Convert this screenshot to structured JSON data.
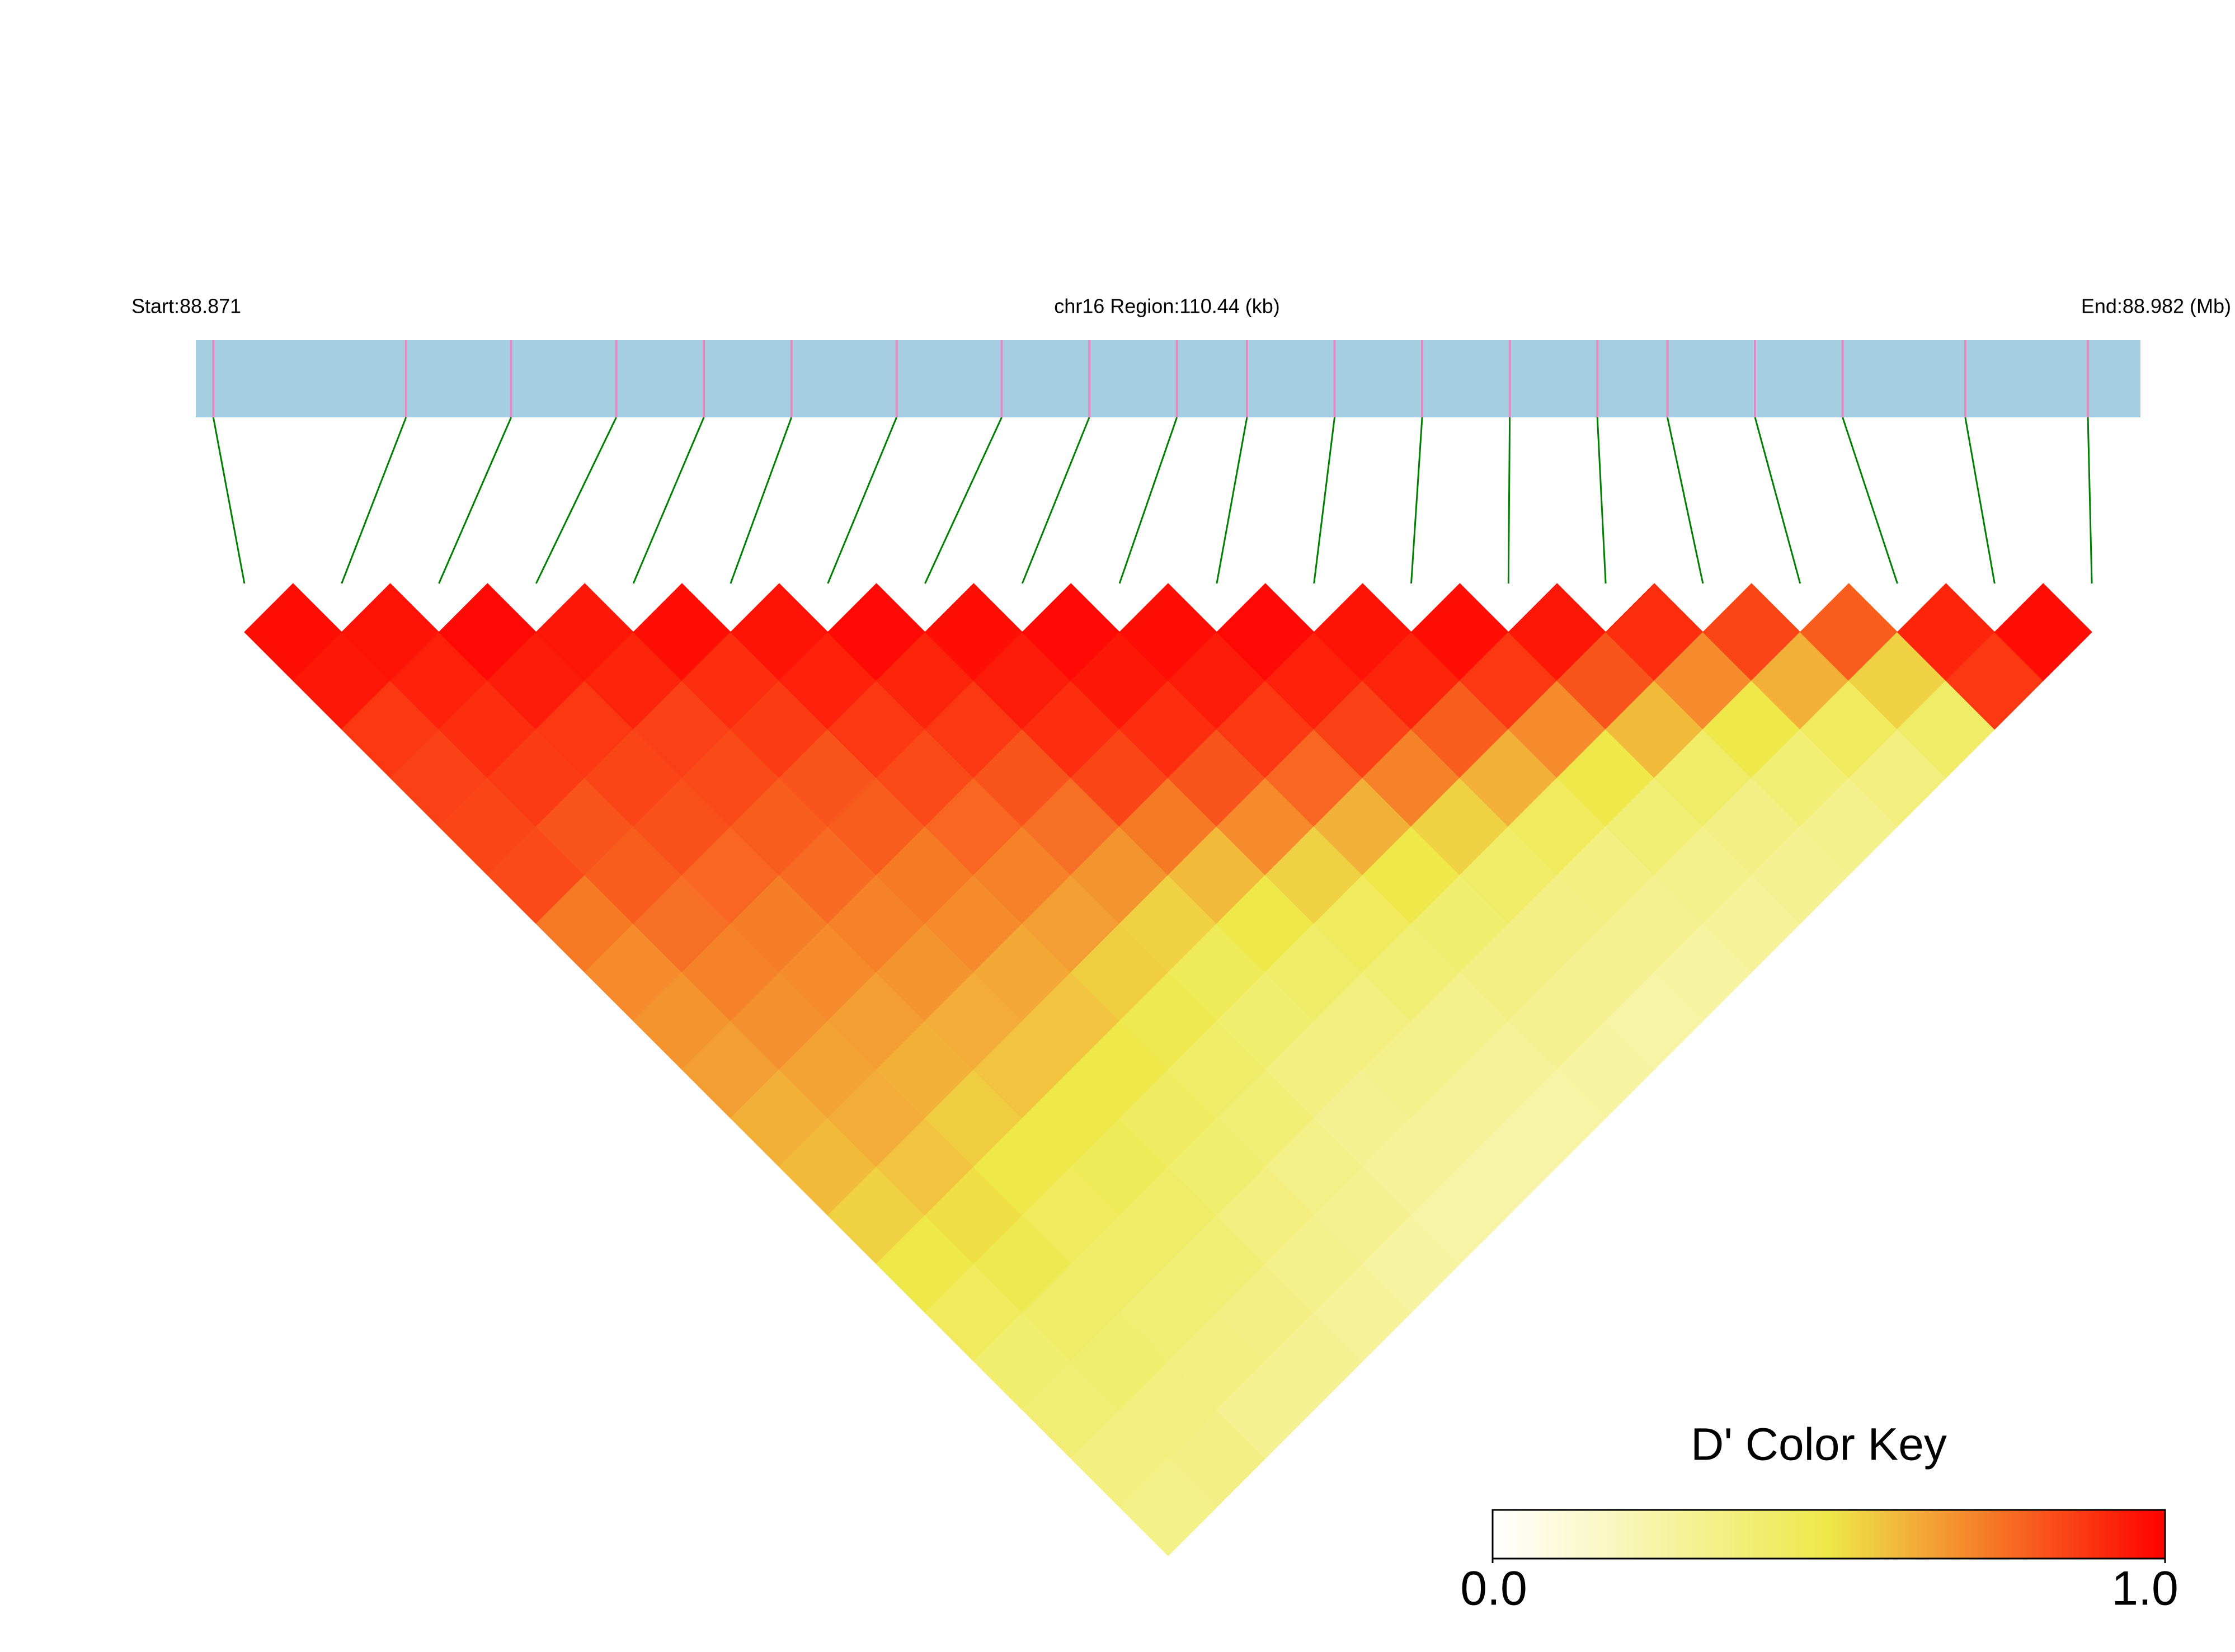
{
  "chart_data": {
    "type": "ld_heatmap",
    "start_label": "Start:88.871",
    "region_label": "chr16 Region:110.44 (kb)",
    "end_label": "End:88.982 (Mb)",
    "xlim": [
      88.871,
      88.982
    ],
    "bar_color": "#a6cee3",
    "snp_color": "#e78ac3",
    "link_color": "#008000",
    "positions": [
      88.872,
      88.883,
      88.889,
      88.895,
      88.9,
      88.905,
      88.911,
      88.917,
      88.922,
      88.927,
      88.931,
      88.936,
      88.941,
      88.946,
      88.951,
      88.955,
      88.96,
      88.965,
      88.972,
      88.979
    ],
    "ld": [
      [
        0.97,
        0.95,
        0.88,
        0.86,
        0.85,
        0.84,
        0.74,
        0.7,
        0.68,
        0.66,
        0.62,
        0.6,
        0.55,
        0.5,
        0.45,
        0.4,
        0.38,
        0.35,
        0.33
      ],
      [
        0.96,
        0.93,
        0.9,
        0.87,
        0.82,
        0.8,
        0.76,
        0.72,
        0.69,
        0.65,
        0.63,
        0.58,
        0.52,
        0.48,
        0.42,
        0.4,
        0.36,
        0.34
      ],
      [
        0.98,
        0.94,
        0.88,
        0.85,
        0.83,
        0.78,
        0.73,
        0.7,
        0.66,
        0.62,
        0.56,
        0.5,
        0.45,
        0.42,
        0.38,
        0.35,
        0.3
      ],
      [
        0.95,
        0.92,
        0.86,
        0.84,
        0.8,
        0.77,
        0.72,
        0.68,
        0.63,
        0.58,
        0.5,
        0.46,
        0.42,
        0.38,
        0.34,
        0.3
      ],
      [
        0.97,
        0.9,
        0.87,
        0.82,
        0.8,
        0.74,
        0.7,
        0.64,
        0.58,
        0.5,
        0.44,
        0.4,
        0.36,
        0.32,
        0.28
      ],
      [
        0.96,
        0.93,
        0.88,
        0.84,
        0.78,
        0.72,
        0.66,
        0.56,
        0.48,
        0.42,
        0.38,
        0.33,
        0.3,
        0.26
      ],
      [
        0.98,
        0.92,
        0.88,
        0.82,
        0.76,
        0.68,
        0.55,
        0.46,
        0.4,
        0.35,
        0.3,
        0.28,
        0.25
      ],
      [
        0.97,
        0.94,
        0.9,
        0.85,
        0.74,
        0.6,
        0.5,
        0.42,
        0.36,
        0.32,
        0.28,
        0.24
      ],
      [
        0.98,
        0.95,
        0.9,
        0.82,
        0.7,
        0.55,
        0.45,
        0.38,
        0.32,
        0.28,
        0.25
      ],
      [
        0.97,
        0.94,
        0.88,
        0.78,
        0.62,
        0.5,
        0.4,
        0.34,
        0.3,
        0.26
      ],
      [
        0.98,
        0.93,
        0.86,
        0.72,
        0.55,
        0.42,
        0.34,
        0.3,
        0.25
      ],
      [
        0.96,
        0.92,
        0.8,
        0.62,
        0.45,
        0.35,
        0.3,
        0.26
      ],
      [
        0.97,
        0.88,
        0.7,
        0.5,
        0.38,
        0.32,
        0.28
      ],
      [
        0.95,
        0.82,
        0.6,
        0.42,
        0.34,
        0.3
      ],
      [
        0.9,
        0.7,
        0.5,
        0.38,
        0.32
      ],
      [
        0.85,
        0.62,
        0.45,
        0.36
      ],
      [
        0.8,
        0.55,
        0.42
      ],
      [
        0.92,
        0.88
      ],
      [
        0.97
      ]
    ],
    "color_key": {
      "title": "D' Color Key",
      "lim": [
        0,
        1
      ],
      "ticks": [
        {
          "value": 0,
          "label": "0.0"
        },
        {
          "value": 1,
          "label": "1.0"
        }
      ],
      "colors": [
        "#ffffff",
        "#eee84a",
        "#ff0000"
      ]
    }
  }
}
